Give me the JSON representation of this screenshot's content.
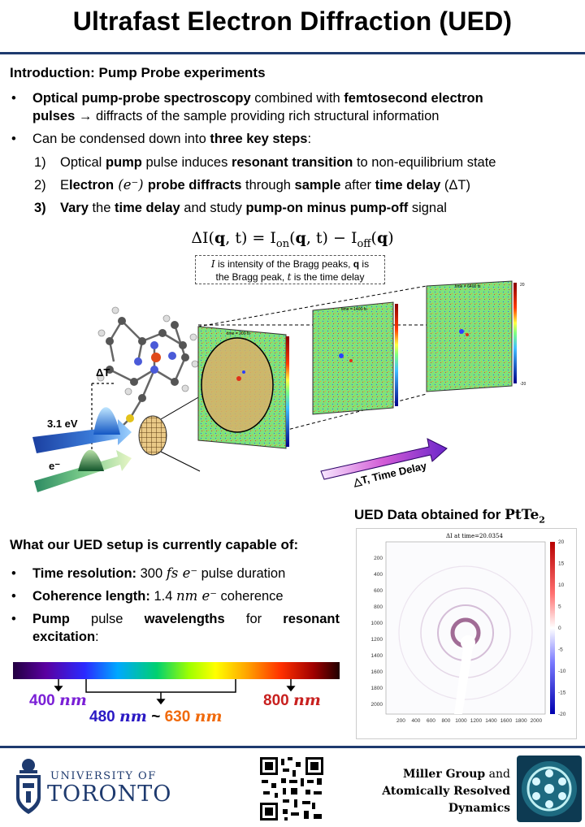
{
  "title": "Ultrafast Electron Diffraction (UED)",
  "intro": {
    "heading": "Introduction: Pump Probe experiments",
    "bullet1": {
      "b1": "Optical pump-probe spectroscopy",
      "t1": " combined with ",
      "b2": "femtosecond electron",
      "b3": "pulses",
      "t2": " → diffracts of the sample providing rich structural information"
    },
    "bullet2": {
      "t1": "Can be condensed down into ",
      "b1": "three key steps",
      "t2": ":"
    },
    "steps": [
      {
        "num": "1)",
        "t1": "Optical ",
        "b1": "pump",
        "t2": " pulse induces ",
        "b2": "resonant transition",
        "t3": " to non-equilibrium state"
      },
      {
        "num": "2)",
        "t1": "E",
        "b1": "lectron",
        "t2": " (e⁻) ",
        "b2": "probe diffracts",
        "t3": " through ",
        "b3": "sample",
        "t4": " after ",
        "b4": "time delay",
        "t5": " (ΔT)"
      },
      {
        "num": "3)",
        "b0": "Vary",
        "t1": " the ",
        "b1": "time delay",
        "t2": " and study ",
        "b2": "pump-on minus pump-off",
        "t3": " signal"
      }
    ]
  },
  "formula": "ΔI(q, t) = I_on(q, t) − I_off(q)",
  "formula_parts": {
    "lhs": "ΔI(",
    "q": "q",
    "rest1": ", t) = I",
    "on": "on",
    "mid": "(",
    "q2": "q",
    "rest2": ", t) − I",
    "off": "off",
    "mid2": "(",
    "q3": "q",
    "end": ")"
  },
  "formula_note": {
    "t1": "I",
    "t2": " is intensity of the Bragg peaks, ",
    "b1": "q",
    "t3": " is",
    "t4": "the Bragg peak, ",
    "t5": "t",
    "t6": " is the time delay"
  },
  "diagram": {
    "delta_t": "ΔT",
    "energy": "3.1 eV",
    "electron": "e⁻",
    "time_delay": "△T, Time Delay",
    "panel_labels": [
      "time = 200 fs",
      "time = 1400 fs",
      "time = 6400 fs"
    ],
    "colorbar_max": "20",
    "colorbar_min": "-20"
  },
  "capabilities": {
    "heading": "What our UED setup is currently capable of:",
    "items": [
      {
        "b": "Time resolution:",
        "t": " 300 ",
        "m": "fs e⁻",
        "t2": " pulse duration"
      },
      {
        "b": "Coherence length:",
        "t": " 1.4 ",
        "m": "nm e⁻",
        "t2": " coherence"
      },
      {
        "b": "Pump",
        "t": " pulse ",
        "b2": "wavelengths",
        "t2": " for ",
        "b3": "resonant",
        "t3": "excitation",
        "t4": ":"
      }
    ]
  },
  "wavelengths": {
    "w400": "400",
    "w480": "480",
    "w630": "630",
    "w800": "800",
    "unit": "nm",
    "tilde": "~",
    "colors": {
      "w400": "#7a1fd6",
      "w480": "#2a19c4",
      "w630": "#f06a0c",
      "w800": "#c8201f"
    }
  },
  "ued_data": {
    "title": "UED Data obtained for",
    "material": "PtTe",
    "sub": "2",
    "plot_title": "ΔI at time=20.0354",
    "yticks": [
      "200",
      "400",
      "600",
      "800",
      "1000",
      "1200",
      "1400",
      "1600",
      "1800",
      "2000"
    ],
    "xticks": [
      "200",
      "400",
      "600",
      "800",
      "1000",
      "1200",
      "1400",
      "1600",
      "1800",
      "2000"
    ],
    "cbar": [
      "20",
      "15",
      "10",
      "5",
      "0",
      "-5",
      "-10",
      "-15",
      "-20"
    ]
  },
  "footer": {
    "univ_of": "UNIVERSITY OF",
    "univ_name": "TORONTO",
    "group_line1a": "Miller Group",
    "group_line1b": " and",
    "group_line2": "Atomically Resolved",
    "group_line3": "Dynamics"
  },
  "colors": {
    "rule": "#1e3a6e",
    "red": "#d42020"
  }
}
